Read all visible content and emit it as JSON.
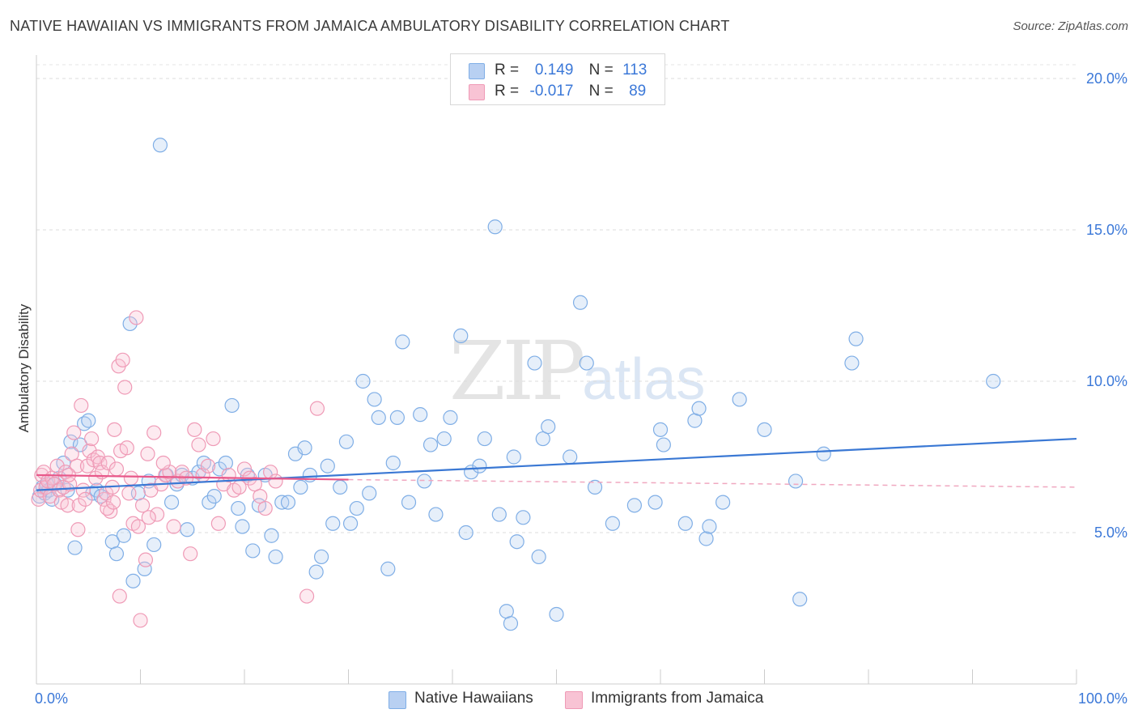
{
  "title": "NATIVE HAWAIIAN VS IMMIGRANTS FROM JAMAICA AMBULATORY DISABILITY CORRELATION CHART",
  "source": "Source: ZipAtlas.com",
  "watermark": {
    "zip": "ZIP",
    "atlas": "atlas"
  },
  "legend": {
    "rows": [
      {
        "r_label": "R =",
        "r_value": "0.149",
        "n_label": "N =",
        "n_value": "113",
        "color": "#7faee6",
        "fill": "#b8d0f2"
      },
      {
        "r_label": "R =",
        "r_value": "-0.017",
        "n_label": "N =",
        "n_value": "89",
        "color": "#ef9ab6",
        "fill": "#f8c3d4"
      }
    ]
  },
  "chart_data": {
    "type": "scatter",
    "ylabel": "Ambulatory Disability",
    "xlim": [
      0,
      100
    ],
    "ylim": [
      0,
      20
    ],
    "x_tick_labels": [
      "0.0%",
      "100.0%"
    ],
    "y_ticks": [
      5,
      10,
      15,
      20
    ],
    "y_tick_labels": [
      "5.0%",
      "10.0%",
      "15.0%",
      "20.0%"
    ],
    "grid": true,
    "colors": {
      "blue": "#3a78d4",
      "pink": "#e8588a",
      "axis_text": "#3b78d8"
    },
    "series": [
      {
        "name": "Native Hawaiians",
        "color": "#7faee6",
        "trend": {
          "x": [
            0,
            100
          ],
          "y": [
            6.4,
            8.1
          ],
          "style": "solid"
        },
        "points": [
          [
            0.3,
            6.2
          ],
          [
            0.6,
            6.5
          ],
          [
            0.8,
            6.3
          ],
          [
            1.0,
            6.6
          ],
          [
            1.2,
            6.4
          ],
          [
            1.5,
            6.1
          ],
          [
            1.8,
            6.6
          ],
          [
            2.2,
            6.8
          ],
          [
            2.6,
            7.3
          ],
          [
            3.0,
            6.4
          ],
          [
            3.3,
            8.0
          ],
          [
            3.7,
            4.5
          ],
          [
            4.2,
            7.9
          ],
          [
            4.6,
            8.6
          ],
          [
            5.0,
            8.7
          ],
          [
            5.4,
            6.3
          ],
          [
            5.8,
            6.4
          ],
          [
            6.2,
            6.2
          ],
          [
            7.3,
            4.7
          ],
          [
            7.7,
            4.3
          ],
          [
            8.4,
            4.9
          ],
          [
            9.0,
            11.9
          ],
          [
            9.3,
            3.4
          ],
          [
            9.8,
            6.3
          ],
          [
            10.4,
            3.8
          ],
          [
            10.8,
            6.7
          ],
          [
            11.3,
            4.6
          ],
          [
            11.9,
            17.8
          ],
          [
            12.5,
            6.9
          ],
          [
            13.0,
            6.0
          ],
          [
            13.5,
            6.6
          ],
          [
            14.0,
            6.9
          ],
          [
            14.5,
            5.1
          ],
          [
            15.0,
            6.8
          ],
          [
            15.6,
            7.0
          ],
          [
            16.1,
            7.3
          ],
          [
            16.6,
            6.0
          ],
          [
            17.1,
            6.2
          ],
          [
            17.6,
            7.1
          ],
          [
            18.2,
            7.3
          ],
          [
            18.8,
            9.2
          ],
          [
            19.4,
            5.8
          ],
          [
            19.8,
            5.2
          ],
          [
            20.3,
            6.9
          ],
          [
            20.8,
            4.4
          ],
          [
            21.4,
            5.9
          ],
          [
            22.0,
            6.9
          ],
          [
            22.6,
            4.9
          ],
          [
            23.0,
            4.2
          ],
          [
            23.6,
            6.0
          ],
          [
            24.2,
            6.0
          ],
          [
            24.9,
            7.6
          ],
          [
            25.4,
            6.5
          ],
          [
            25.8,
            7.8
          ],
          [
            26.3,
            6.9
          ],
          [
            26.9,
            3.7
          ],
          [
            27.4,
            4.2
          ],
          [
            28.0,
            7.2
          ],
          [
            28.5,
            5.3
          ],
          [
            29.2,
            6.5
          ],
          [
            29.8,
            8.0
          ],
          [
            30.2,
            5.3
          ],
          [
            30.8,
            5.8
          ],
          [
            31.4,
            10.0
          ],
          [
            32.0,
            6.3
          ],
          [
            32.5,
            9.4
          ],
          [
            32.9,
            8.8
          ],
          [
            33.8,
            3.8
          ],
          [
            34.3,
            7.3
          ],
          [
            34.7,
            8.8
          ],
          [
            35.2,
            11.3
          ],
          [
            35.8,
            6.0
          ],
          [
            36.9,
            8.9
          ],
          [
            37.3,
            6.7
          ],
          [
            37.9,
            7.9
          ],
          [
            38.4,
            5.6
          ],
          [
            39.2,
            8.1
          ],
          [
            39.8,
            8.8
          ],
          [
            40.8,
            11.5
          ],
          [
            41.3,
            5.0
          ],
          [
            41.8,
            7.0
          ],
          [
            42.6,
            7.2
          ],
          [
            43.1,
            8.1
          ],
          [
            44.1,
            15.1
          ],
          [
            44.5,
            5.6
          ],
          [
            45.2,
            2.4
          ],
          [
            45.6,
            2.0
          ],
          [
            45.9,
            7.5
          ],
          [
            46.2,
            4.7
          ],
          [
            46.8,
            5.5
          ],
          [
            47.9,
            10.6
          ],
          [
            48.3,
            4.2
          ],
          [
            48.7,
            8.1
          ],
          [
            49.2,
            8.5
          ],
          [
            50.0,
            2.3
          ],
          [
            51.3,
            7.5
          ],
          [
            52.3,
            12.6
          ],
          [
            52.9,
            10.6
          ],
          [
            53.7,
            6.5
          ],
          [
            55.4,
            5.3
          ],
          [
            57.5,
            5.9
          ],
          [
            59.5,
            6.0
          ],
          [
            60.0,
            8.4
          ],
          [
            60.3,
            7.9
          ],
          [
            62.4,
            5.3
          ],
          [
            63.3,
            8.7
          ],
          [
            63.7,
            9.1
          ],
          [
            64.4,
            4.8
          ],
          [
            64.7,
            5.2
          ],
          [
            66.0,
            6.0
          ],
          [
            67.6,
            9.4
          ],
          [
            70.0,
            8.4
          ],
          [
            73.0,
            6.7
          ],
          [
            73.4,
            2.8
          ],
          [
            75.7,
            7.6
          ],
          [
            78.4,
            10.6
          ],
          [
            78.8,
            11.4
          ],
          [
            92.0,
            10.0
          ]
        ]
      },
      {
        "name": "Immigrants from Jamaica",
        "color": "#ef9ab6",
        "trend": {
          "x": [
            0,
            30
          ],
          "y": [
            6.9,
            6.75
          ],
          "style": "solid",
          "extend_to": [
            100,
            6.5
          ]
        },
        "points": [
          [
            0.2,
            6.1
          ],
          [
            0.4,
            6.4
          ],
          [
            0.5,
            6.9
          ],
          [
            0.7,
            7.0
          ],
          [
            0.9,
            6.5
          ],
          [
            1.1,
            6.7
          ],
          [
            1.3,
            6.2
          ],
          [
            1.5,
            6.8
          ],
          [
            1.7,
            6.6
          ],
          [
            2.0,
            7.2
          ],
          [
            2.2,
            6.4
          ],
          [
            2.4,
            6.0
          ],
          [
            2.6,
            6.5
          ],
          [
            2.8,
            7.0
          ],
          [
            3.0,
            5.9
          ],
          [
            3.2,
            6.6
          ],
          [
            3.4,
            7.6
          ],
          [
            3.6,
            8.3
          ],
          [
            3.9,
            7.2
          ],
          [
            4.1,
            5.9
          ],
          [
            4.3,
            9.2
          ],
          [
            4.5,
            6.4
          ],
          [
            4.7,
            6.1
          ],
          [
            4.9,
            7.2
          ],
          [
            5.1,
            7.7
          ],
          [
            5.3,
            8.1
          ],
          [
            5.5,
            7.4
          ],
          [
            5.7,
            6.8
          ],
          [
            5.9,
            7.5
          ],
          [
            6.1,
            7.3
          ],
          [
            6.3,
            7.0
          ],
          [
            6.5,
            6.1
          ],
          [
            6.7,
            6.3
          ],
          [
            6.9,
            7.3
          ],
          [
            7.1,
            5.7
          ],
          [
            7.3,
            6.5
          ],
          [
            7.5,
            8.4
          ],
          [
            7.7,
            7.1
          ],
          [
            7.9,
            10.5
          ],
          [
            8.1,
            7.7
          ],
          [
            8.3,
            10.7
          ],
          [
            8.5,
            9.8
          ],
          [
            8.7,
            7.8
          ],
          [
            8.9,
            6.3
          ],
          [
            9.1,
            6.8
          ],
          [
            9.3,
            5.3
          ],
          [
            9.6,
            12.1
          ],
          [
            9.8,
            5.2
          ],
          [
            10.0,
            2.1
          ],
          [
            10.2,
            5.9
          ],
          [
            10.5,
            4.1
          ],
          [
            10.7,
            7.6
          ],
          [
            11.0,
            6.4
          ],
          [
            11.3,
            8.3
          ],
          [
            11.6,
            5.6
          ],
          [
            12.0,
            6.6
          ],
          [
            12.4,
            6.9
          ],
          [
            12.8,
            7.0
          ],
          [
            13.2,
            5.2
          ],
          [
            13.6,
            6.7
          ],
          [
            14.0,
            7.0
          ],
          [
            14.4,
            6.8
          ],
          [
            14.8,
            4.3
          ],
          [
            15.2,
            8.4
          ],
          [
            15.6,
            7.9
          ],
          [
            16.0,
            6.9
          ],
          [
            16.5,
            7.2
          ],
          [
            17.0,
            8.1
          ],
          [
            17.5,
            5.3
          ],
          [
            18.0,
            6.6
          ],
          [
            18.5,
            6.9
          ],
          [
            19.0,
            6.4
          ],
          [
            19.5,
            6.5
          ],
          [
            20.0,
            7.1
          ],
          [
            20.5,
            6.8
          ],
          [
            21.0,
            6.6
          ],
          [
            21.5,
            6.2
          ],
          [
            22.0,
            5.8
          ],
          [
            22.5,
            7.0
          ],
          [
            23.0,
            6.7
          ],
          [
            26.0,
            2.9
          ],
          [
            27.0,
            9.1
          ],
          [
            8.0,
            2.9
          ],
          [
            6.8,
            5.8
          ],
          [
            4.0,
            5.1
          ],
          [
            7.4,
            6.0
          ],
          [
            10.8,
            5.5
          ],
          [
            12.2,
            7.3
          ],
          [
            3.1,
            6.9
          ]
        ]
      }
    ]
  },
  "bottom_legend": [
    {
      "label": "Native Hawaiians",
      "color": "#7faee6",
      "fill": "#b8d0f2"
    },
    {
      "label": "Immigrants from Jamaica",
      "color": "#ef9ab6",
      "fill": "#f8c3d4"
    }
  ]
}
